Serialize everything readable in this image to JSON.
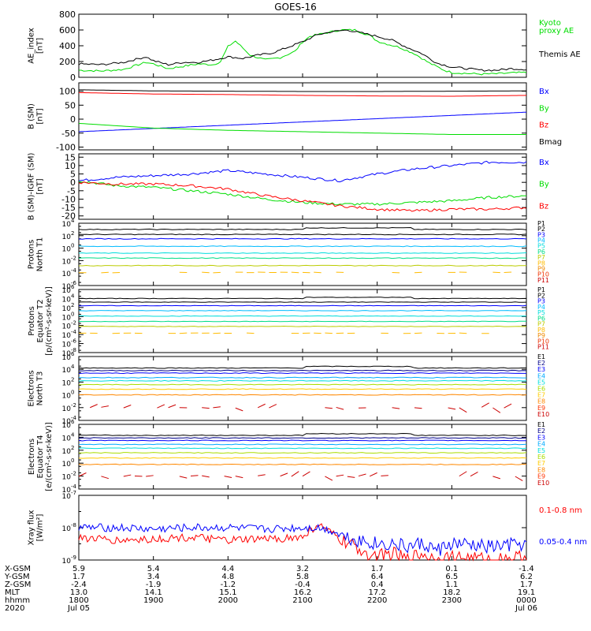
{
  "title": "GOES-16",
  "colors": {
    "black": "#000000",
    "blue": "#0000ff",
    "green": "#00dd00",
    "red": "#ff0000",
    "p4": "#00bbff",
    "p5": "#00dddd",
    "p6": "#00dd88",
    "p7": "#bbcc00",
    "p8": "#ffbb00",
    "p9": "#ee8800",
    "p10": "#ee3300",
    "p11": "#cc0000",
    "darkblue": "#000088",
    "e4": "#00aaff",
    "e5": "#00dddd",
    "e6": "#aadd00",
    "e7": "#ffcc00",
    "e8": "#ff8800",
    "e9": "#ff3300",
    "e10": "#cc0000"
  },
  "chart_data": [
    {
      "type": "line",
      "panel": "ae",
      "ylabel": [
        "AE_index",
        "[nT]"
      ],
      "ylim": [
        0,
        800
      ],
      "ytick_values": [
        0,
        200,
        400,
        600,
        800
      ],
      "ytick_labels": [
        "0",
        "200",
        "400",
        "600",
        "800"
      ],
      "series": [
        {
          "name": "Kyoto proxy AE",
          "label_lines": [
            "Kyoto",
            "proxy AE"
          ],
          "color": "#00dd00",
          "x": [
            0,
            0.3,
            0.6,
            0.9,
            1.0,
            1.2,
            1.4,
            1.6,
            1.8,
            1.9,
            2.0,
            2.1,
            2.3,
            2.5,
            2.7,
            2.9,
            3.0,
            3.1,
            3.3,
            3.5,
            3.7,
            3.9,
            4.0,
            4.1,
            4.3,
            4.5,
            4.7,
            4.9,
            5.0,
            5.2,
            5.4,
            5.6,
            5.8,
            6.0
          ],
          "y": [
            90,
            80,
            100,
            190,
            170,
            110,
            140,
            170,
            160,
            200,
            390,
            460,
            280,
            220,
            250,
            330,
            450,
            520,
            560,
            600,
            600,
            530,
            460,
            430,
            380,
            300,
            180,
            90,
            60,
            50,
            40,
            45,
            55,
            60
          ]
        },
        {
          "name": "Themis AE",
          "label_lines": [
            "Themis AE"
          ],
          "color": "#000000",
          "x": [
            0,
            0.3,
            0.6,
            0.9,
            1.0,
            1.2,
            1.4,
            1.6,
            1.8,
            2.0,
            2.2,
            2.4,
            2.6,
            2.8,
            3.0,
            3.2,
            3.4,
            3.6,
            3.8,
            4.0,
            4.2,
            4.4,
            4.6,
            4.8,
            5.0,
            5.2,
            5.4,
            5.6,
            5.8,
            6.0
          ],
          "y": [
            170,
            160,
            190,
            260,
            210,
            160,
            190,
            190,
            220,
            260,
            240,
            280,
            310,
            380,
            450,
            540,
            580,
            600,
            560,
            520,
            470,
            380,
            300,
            180,
            130,
            110,
            90,
            90,
            110,
            100
          ]
        }
      ]
    },
    {
      "type": "line",
      "panel": "b",
      "ylabel": [
        "B (SM)",
        "[nT]"
      ],
      "ylim": [
        -110,
        130
      ],
      "ytick_values": [
        -100,
        -50,
        0,
        50,
        100
      ],
      "ytick_labels": [
        "-100",
        "-50",
        "0",
        "50",
        "100"
      ],
      "series": [
        {
          "name": "Bx",
          "color": "#0000ff",
          "x": [
            0,
            6
          ],
          "y": [
            -45,
            25
          ]
        },
        {
          "name": "By",
          "color": "#00dd00",
          "x": [
            0,
            1,
            2,
            3,
            4,
            5,
            6
          ],
          "y": [
            -15,
            -32,
            -40,
            -45,
            -50,
            -55,
            -55
          ]
        },
        {
          "name": "Bz",
          "color": "#ff0000",
          "x": [
            0,
            1,
            2,
            3,
            4,
            5,
            6
          ],
          "y": [
            95,
            90,
            88,
            85,
            83,
            82,
            85
          ]
        },
        {
          "name": "Bmag",
          "color": "#000000",
          "x": [
            0,
            1,
            2,
            3,
            4,
            5,
            6
          ],
          "y": [
            105,
            101,
            100,
            99,
            99,
            100,
            101
          ]
        }
      ]
    },
    {
      "type": "line",
      "panel": "db",
      "ylabel": [
        "B (SM)-IGRF (SM)",
        "[nT]"
      ],
      "ylim": [
        -22,
        17
      ],
      "ytick_values": [
        -20,
        -15,
        -10,
        -5,
        0,
        5,
        10,
        15
      ],
      "ytick_labels": [
        "-20",
        "-15",
        "-10",
        "-5",
        "0",
        "5",
        "10",
        "15"
      ],
      "series": [
        {
          "name": "Bx",
          "color": "#0000ff",
          "x": [
            0,
            0.5,
            1,
            1.5,
            2,
            2.5,
            3,
            3.5,
            4,
            4.5,
            5,
            5.5,
            6
          ],
          "y": [
            1,
            3,
            4,
            5,
            7,
            5,
            3,
            1,
            5,
            8,
            10,
            12,
            12
          ]
        },
        {
          "name": "By",
          "color": "#00dd00",
          "x": [
            0,
            0.5,
            1,
            1.5,
            2,
            2.5,
            3,
            3.5,
            4,
            4.5,
            5,
            5.5,
            6
          ],
          "y": [
            1,
            -2,
            -3,
            -5,
            -7,
            -10,
            -12,
            -13,
            -13,
            -12,
            -11,
            -9,
            -8
          ]
        },
        {
          "name": "Bz",
          "color": "#ff0000",
          "x": [
            0,
            0.5,
            1,
            1.5,
            2,
            2.5,
            3,
            3.5,
            4,
            4.5,
            5,
            5.5,
            6
          ],
          "y": [
            0,
            -1,
            -1,
            -2,
            -4,
            -8,
            -11,
            -14,
            -16,
            -17,
            -16,
            -16,
            -15
          ]
        }
      ]
    },
    {
      "type": "line",
      "panel": "pN",
      "ylabel": [
        "Protons",
        "North T1"
      ],
      "ylog": true,
      "ylim": [
        1e-06,
        10000.0
      ],
      "ytick_exponents": [
        4,
        2,
        0,
        -2,
        -4,
        -6
      ],
      "ytick_labels": [
        "10",
        "10",
        "10",
        "10",
        "10",
        "10"
      ],
      "ytick_sups": [
        "4",
        "2",
        "0",
        "-2",
        "-4",
        "-6"
      ],
      "channel_labels": [
        "P1",
        "P2",
        "P3",
        "P4",
        "P5",
        "P6",
        "P7",
        "P8",
        "P9",
        "P10",
        "P11"
      ],
      "channel_colors": [
        "#000000",
        "#000000",
        "#0000ff",
        "#00bbff",
        "#00dddd",
        "#00dd88",
        "#bbcc00",
        "#ffbb00",
        "#ee8800",
        "#ee3300",
        "#cc0000"
      ],
      "series": [
        {
          "name": "P1",
          "color": "#000000",
          "log10": 3.0
        },
        {
          "name": "P2",
          "color": "#000000",
          "log10": 2.2
        },
        {
          "name": "P3",
          "color": "#0000ff",
          "log10": 1.5
        },
        {
          "name": "P4",
          "color": "#00bbff",
          "log10": 0.3
        },
        {
          "name": "P5",
          "color": "#00dddd",
          "log10": -0.8
        },
        {
          "name": "P6",
          "color": "#00dd88",
          "log10": -1.6
        },
        {
          "name": "P7",
          "color": "#bbcc00",
          "log10": -2.8
        },
        {
          "name": "P8",
          "color": "#ffbb00",
          "log10": -3.9
        }
      ]
    },
    {
      "type": "line",
      "panel": "pE",
      "ylabel": [
        "Protons",
        "Equator T2",
        "[p/(cm²-s-sr-keV)]"
      ],
      "ylog": true,
      "ylim": [
        1e-08,
        1000000.0
      ],
      "ytick_exponents": [
        6,
        4,
        2,
        0,
        -2,
        -4,
        -6,
        -8
      ],
      "ytick_labels": [
        "10",
        "10",
        "10",
        "10",
        "10",
        "10",
        "10",
        "10"
      ],
      "ytick_sups": [
        "6",
        "4",
        "2",
        "0",
        "-2",
        "-4",
        "-6",
        "-8"
      ],
      "channel_labels": [
        "P1",
        "P2",
        "P3",
        "P4",
        "P5",
        "P6",
        "P7",
        "P8",
        "P9",
        "P10",
        "P11"
      ],
      "channel_colors": [
        "#000000",
        "#000000",
        "#0000ff",
        "#00bbff",
        "#00dddd",
        "#00dd88",
        "#bbcc00",
        "#ffbb00",
        "#ee8800",
        "#ee3300",
        "#cc0000"
      ],
      "series": [
        {
          "name": "P1",
          "color": "#000000",
          "log10": 4.0
        },
        {
          "name": "P2",
          "color": "#000000",
          "log10": 3.2
        },
        {
          "name": "P3",
          "color": "#0000ff",
          "log10": 2.4
        },
        {
          "name": "P4",
          "color": "#00bbff",
          "log10": 1.3
        },
        {
          "name": "P5",
          "color": "#00dddd",
          "log10": 0.1
        },
        {
          "name": "P6",
          "color": "#00dd88",
          "log10": -1.1
        },
        {
          "name": "P7",
          "color": "#bbcc00",
          "log10": -2.2
        },
        {
          "name": "P8",
          "color": "#ffbb00",
          "log10": -3.7
        }
      ]
    },
    {
      "type": "line",
      "panel": "eN",
      "ylabel": [
        "Electrons",
        "North T3"
      ],
      "ylog": true,
      "ylim": [
        0.0001,
        1000000.0
      ],
      "ytick_exponents": [
        6,
        4,
        2,
        0,
        -2,
        -4
      ],
      "ytick_labels": [
        "10",
        "10",
        "10",
        "10",
        "10",
        "10"
      ],
      "ytick_sups": [
        "6",
        "4",
        "2",
        "0",
        "-2",
        "-4"
      ],
      "channel_labels": [
        "E1",
        "E2",
        "E3",
        "E4",
        "E5",
        "E6",
        "E7",
        "E8",
        "E9",
        "E10"
      ],
      "channel_colors": [
        "#000000",
        "#000088",
        "#0000ff",
        "#00aaff",
        "#00dddd",
        "#aadd00",
        "#ffcc00",
        "#ff8800",
        "#ff3300",
        "#cc0000"
      ],
      "series": [
        {
          "name": "E1",
          "color": "#000000",
          "log10": 4.2
        },
        {
          "name": "E2",
          "color": "#000088",
          "log10": 3.8
        },
        {
          "name": "E3",
          "color": "#0000ff",
          "log10": 3.4
        },
        {
          "name": "E4",
          "color": "#00aaff",
          "log10": 2.7
        },
        {
          "name": "E5",
          "color": "#00dddd",
          "log10": 2.2
        },
        {
          "name": "E6",
          "color": "#aadd00",
          "log10": 1.6
        },
        {
          "name": "E7",
          "color": "#ffcc00",
          "log10": 0.9
        },
        {
          "name": "E8",
          "color": "#ff8800",
          "log10": 0.0
        },
        {
          "name": "E10",
          "color": "#cc0000",
          "log10": -2.0
        }
      ]
    },
    {
      "type": "line",
      "panel": "eE",
      "ylabel": [
        "Electrons",
        "Equator T4",
        "[e/(cm²-s-sr-keV)]"
      ],
      "ylog": true,
      "ylim": [
        0.0001,
        1000000.0
      ],
      "ytick_exponents": [
        6,
        4,
        2,
        0,
        -2,
        -4
      ],
      "ytick_labels": [
        "10",
        "10",
        "10",
        "10",
        "10",
        "10"
      ],
      "ytick_sups": [
        "6",
        "4",
        "2",
        "0",
        "-2",
        "-4"
      ],
      "channel_labels": [
        "E1",
        "E2",
        "E3",
        "E4",
        "E5",
        "E6",
        "E7",
        "E8",
        "E9",
        "E10"
      ],
      "channel_colors": [
        "#000000",
        "#000088",
        "#0000ff",
        "#00aaff",
        "#00dddd",
        "#aadd00",
        "#ffcc00",
        "#ff8800",
        "#ff3300",
        "#cc0000"
      ],
      "series": [
        {
          "name": "E1",
          "color": "#000000",
          "log10": 4.3
        },
        {
          "name": "E2",
          "color": "#000088",
          "log10": 3.9
        },
        {
          "name": "E3",
          "color": "#0000ff",
          "log10": 3.5
        },
        {
          "name": "E4",
          "color": "#00aaff",
          "log10": 2.9
        },
        {
          "name": "E5",
          "color": "#00dddd",
          "log10": 2.3
        },
        {
          "name": "E6",
          "color": "#aadd00",
          "log10": 1.6
        },
        {
          "name": "E7",
          "color": "#ffcc00",
          "log10": 0.8
        },
        {
          "name": "E8",
          "color": "#ff8800",
          "log10": -0.2
        },
        {
          "name": "E10",
          "color": "#cc0000",
          "log10": -2.0
        }
      ]
    },
    {
      "type": "line",
      "panel": "xray",
      "ylabel": [
        "Xray flux",
        "[W/m²]"
      ],
      "ylog": true,
      "ylim": [
        1e-09,
        1e-07
      ],
      "ytick_exponents": [
        -7,
        -8,
        -9
      ],
      "ytick_labels": [
        "10",
        "10",
        "10"
      ],
      "ytick_sups": [
        "-7",
        "-8",
        "-9"
      ],
      "series": [
        {
          "name": "0.1-0.8 nm",
          "color": "#ff0000",
          "x": [
            0,
            0.5,
            1,
            1.5,
            2,
            2.5,
            3,
            3.2,
            3.4,
            3.6,
            3.8,
            4.0,
            4.2,
            4.4,
            4.6,
            4.8,
            5.0,
            5.5,
            6
          ],
          "log10": [
            -8.3,
            -8.4,
            -8.35,
            -8.3,
            -8.4,
            -8.35,
            -8.3,
            -7.9,
            -8.2,
            -8.5,
            -8.7,
            -8.9,
            -8.8,
            -9.0,
            -8.8,
            -9.0,
            -8.9,
            -9.0,
            -8.9
          ]
        },
        {
          "name": "0.05-0.4 nm",
          "color": "#0000ff",
          "x": [
            0,
            0.5,
            1,
            1.5,
            2,
            2.5,
            3,
            3.2,
            3.4,
            3.6,
            3.8,
            4.0,
            4.2,
            4.4,
            4.6,
            4.8,
            5.0,
            5.5,
            6
          ],
          "log10": [
            -8.0,
            -8.0,
            -8.05,
            -8.0,
            -8.0,
            -8.05,
            -8.0,
            -8.0,
            -8.1,
            -8.3,
            -8.4,
            -8.5,
            -8.5,
            -8.6,
            -8.5,
            -8.7,
            -8.5,
            -8.6,
            -8.5
          ]
        }
      ]
    }
  ],
  "ephemeris": {
    "row_labels": [
      "X-GSM",
      "Y-GSM",
      "Z-GSM",
      "MLT",
      "hhmm",
      "2020"
    ],
    "columns": [
      {
        "x": 0,
        "vals": [
          "5.9",
          "1.7",
          "-2.4",
          "13.0",
          "1800",
          "Jul 05"
        ]
      },
      {
        "x": 1,
        "vals": [
          "5.4",
          "3.4",
          "-1.9",
          "14.1",
          "1900",
          ""
        ]
      },
      {
        "x": 2,
        "vals": [
          "4.4",
          "4.8",
          "-1.2",
          "15.1",
          "2000",
          ""
        ]
      },
      {
        "x": 3,
        "vals": [
          "3.2",
          "5.8",
          "-0.4",
          "16.2",
          "2100",
          ""
        ]
      },
      {
        "x": 4,
        "vals": [
          "1.7",
          "6.4",
          "0.4",
          "17.2",
          "2200",
          ""
        ]
      },
      {
        "x": 5,
        "vals": [
          "0.1",
          "6.5",
          "1.1",
          "18.2",
          "2300",
          ""
        ]
      },
      {
        "x": 6,
        "vals": [
          "-1.4",
          "6.2",
          "1.7",
          "19.1",
          "0000",
          "Jul 06"
        ]
      }
    ]
  }
}
